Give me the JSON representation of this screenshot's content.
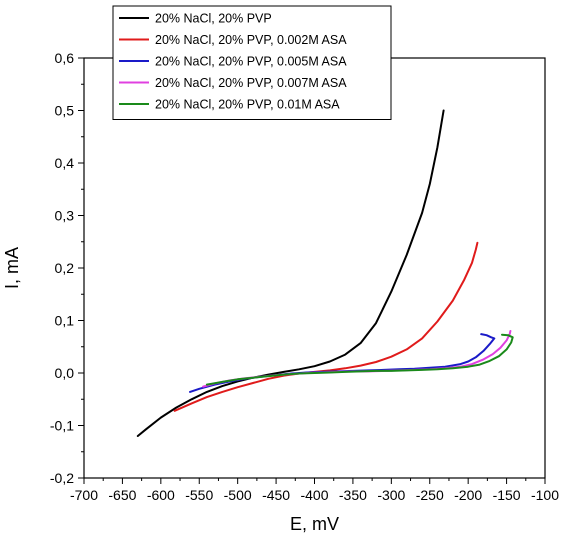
{
  "chart_data": {
    "type": "line",
    "xlabel": "E, mV",
    "ylabel": "I, mA",
    "xlim": [
      -700,
      -100
    ],
    "ylim": [
      -0.2,
      0.6
    ],
    "xticks": [
      -700,
      -650,
      -600,
      -550,
      -500,
      -450,
      -400,
      -350,
      -300,
      -250,
      -200,
      -150,
      -100
    ],
    "yticks": [
      -0.2,
      -0.1,
      0.0,
      0.1,
      0.2,
      0.3,
      0.4,
      0.5,
      0.6
    ],
    "xtick_labels": [
      "-700",
      "-650",
      "-600",
      "-550",
      "-500",
      "-450",
      "-400",
      "-350",
      "-300",
      "-250",
      "-200",
      "-150",
      "-100"
    ],
    "ytick_labels": [
      "-0,2",
      "-0,1",
      "0,0",
      "0,1",
      "0,2",
      "0,3",
      "0,4",
      "0,5",
      "0,6"
    ],
    "grid": false,
    "legend_position": "top-left",
    "series": [
      {
        "name": "20% NaCl, 20% PVP",
        "color": "#000000",
        "points": [
          [
            -630,
            -0.12
          ],
          [
            -620,
            -0.108
          ],
          [
            -600,
            -0.085
          ],
          [
            -580,
            -0.066
          ],
          [
            -560,
            -0.05
          ],
          [
            -540,
            -0.036
          ],
          [
            -520,
            -0.025
          ],
          [
            -500,
            -0.016
          ],
          [
            -480,
            -0.009
          ],
          [
            -460,
            -0.003
          ],
          [
            -440,
            0.002
          ],
          [
            -420,
            0.007
          ],
          [
            -400,
            0.013
          ],
          [
            -380,
            0.022
          ],
          [
            -360,
            0.035
          ],
          [
            -340,
            0.057
          ],
          [
            -320,
            0.095
          ],
          [
            -300,
            0.155
          ],
          [
            -280,
            0.225
          ],
          [
            -260,
            0.305
          ],
          [
            -250,
            0.36
          ],
          [
            -240,
            0.43
          ],
          [
            -232,
            0.5
          ]
        ]
      },
      {
        "name": "20% NaCl, 20% PVP, 0.002M ASA",
        "color": "#e01b1b",
        "points": [
          [
            -582,
            -0.072
          ],
          [
            -560,
            -0.058
          ],
          [
            -540,
            -0.046
          ],
          [
            -520,
            -0.036
          ],
          [
            -500,
            -0.027
          ],
          [
            -480,
            -0.019
          ],
          [
            -460,
            -0.011
          ],
          [
            -440,
            -0.005
          ],
          [
            -420,
            -0.001
          ],
          [
            -400,
            0.002
          ],
          [
            -380,
            0.005
          ],
          [
            -360,
            0.009
          ],
          [
            -340,
            0.014
          ],
          [
            -320,
            0.021
          ],
          [
            -300,
            0.031
          ],
          [
            -280,
            0.045
          ],
          [
            -260,
            0.066
          ],
          [
            -240,
            0.098
          ],
          [
            -220,
            0.138
          ],
          [
            -205,
            0.178
          ],
          [
            -195,
            0.21
          ],
          [
            -190,
            0.235
          ],
          [
            -188,
            0.248
          ]
        ]
      },
      {
        "name": "20% NaCl, 20% PVP, 0.005M ASA",
        "color": "#1a1ac8",
        "points": [
          [
            -562,
            -0.036
          ],
          [
            -550,
            -0.03
          ],
          [
            -530,
            -0.022
          ],
          [
            -510,
            -0.016
          ],
          [
            -490,
            -0.011
          ],
          [
            -470,
            -0.007
          ],
          [
            -450,
            -0.004
          ],
          [
            -430,
            -0.001
          ],
          [
            -410,
            0.001
          ],
          [
            -390,
            0.002
          ],
          [
            -370,
            0.003
          ],
          [
            -350,
            0.004
          ],
          [
            -330,
            0.005
          ],
          [
            -310,
            0.006
          ],
          [
            -290,
            0.007
          ],
          [
            -270,
            0.008
          ],
          [
            -250,
            0.01
          ],
          [
            -230,
            0.012
          ],
          [
            -210,
            0.017
          ],
          [
            -200,
            0.022
          ],
          [
            -190,
            0.03
          ],
          [
            -180,
            0.042
          ],
          [
            -172,
            0.055
          ],
          [
            -166,
            0.066
          ],
          [
            -170,
            0.068
          ],
          [
            -176,
            0.072
          ],
          [
            -183,
            0.074
          ]
        ]
      },
      {
        "name": "20% NaCl, 20% PVP, 0.007M ASA",
        "color": "#e040e0",
        "points": [
          [
            -545,
            -0.026
          ],
          [
            -530,
            -0.02
          ],
          [
            -510,
            -0.014
          ],
          [
            -490,
            -0.01
          ],
          [
            -470,
            -0.007
          ],
          [
            -450,
            -0.004
          ],
          [
            -430,
            -0.002
          ],
          [
            -410,
            0.0
          ],
          [
            -390,
            0.001
          ],
          [
            -370,
            0.002
          ],
          [
            -350,
            0.003
          ],
          [
            -330,
            0.003
          ],
          [
            -310,
            0.004
          ],
          [
            -290,
            0.005
          ],
          [
            -270,
            0.006
          ],
          [
            -250,
            0.007
          ],
          [
            -230,
            0.009
          ],
          [
            -210,
            0.012
          ],
          [
            -195,
            0.017
          ],
          [
            -180,
            0.026
          ],
          [
            -168,
            0.036
          ],
          [
            -158,
            0.048
          ],
          [
            -150,
            0.062
          ],
          [
            -146,
            0.074
          ],
          [
            -145,
            0.08
          ]
        ]
      },
      {
        "name": "20% NaCl, 20% PVP, 0.01M ASA",
        "color": "#1a8a1a",
        "points": [
          [
            -540,
            -0.022
          ],
          [
            -520,
            -0.017
          ],
          [
            -500,
            -0.012
          ],
          [
            -480,
            -0.009
          ],
          [
            -460,
            -0.006
          ],
          [
            -440,
            -0.003
          ],
          [
            -420,
            -0.001
          ],
          [
            -400,
            0.0
          ],
          [
            -380,
            0.001
          ],
          [
            -360,
            0.002
          ],
          [
            -340,
            0.003
          ],
          [
            -320,
            0.004
          ],
          [
            -300,
            0.004
          ],
          [
            -280,
            0.005
          ],
          [
            -260,
            0.006
          ],
          [
            -240,
            0.007
          ],
          [
            -220,
            0.009
          ],
          [
            -200,
            0.012
          ],
          [
            -185,
            0.016
          ],
          [
            -172,
            0.023
          ],
          [
            -160,
            0.032
          ],
          [
            -150,
            0.045
          ],
          [
            -144,
            0.058
          ],
          [
            -142,
            0.068
          ],
          [
            -148,
            0.072
          ],
          [
            -156,
            0.073
          ]
        ]
      }
    ]
  }
}
